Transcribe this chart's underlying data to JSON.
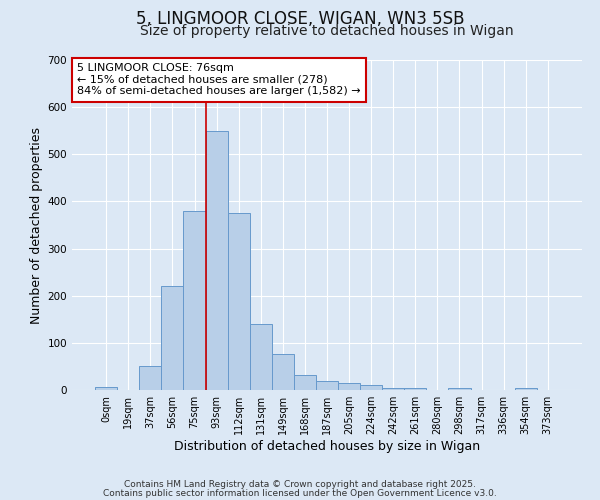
{
  "title1": "5, LINGMOOR CLOSE, WIGAN, WN3 5SB",
  "title2": "Size of property relative to detached houses in Wigan",
  "xlabel": "Distribution of detached houses by size in Wigan",
  "ylabel": "Number of detached properties",
  "bar_labels": [
    "0sqm",
    "19sqm",
    "37sqm",
    "56sqm",
    "75sqm",
    "93sqm",
    "112sqm",
    "131sqm",
    "149sqm",
    "168sqm",
    "187sqm",
    "205sqm",
    "224sqm",
    "242sqm",
    "261sqm",
    "280sqm",
    "298sqm",
    "317sqm",
    "336sqm",
    "354sqm",
    "373sqm"
  ],
  "bar_heights": [
    7,
    0,
    50,
    220,
    380,
    550,
    375,
    140,
    77,
    32,
    20,
    15,
    10,
    5,
    5,
    0,
    5,
    0,
    0,
    5,
    0
  ],
  "bar_color": "#b8cfe8",
  "bar_edge_color": "#6699cc",
  "bar_width": 1.0,
  "vline_x_index": 4,
  "vline_color": "#cc0000",
  "annotation_title": "5 LINGMOOR CLOSE: 76sqm",
  "annotation_line1": "← 15% of detached houses are smaller (278)",
  "annotation_line2": "84% of semi-detached houses are larger (1,582) →",
  "annotation_box_color": "#ffffff",
  "annotation_border_color": "#cc0000",
  "ylim": [
    0,
    700
  ],
  "yticks": [
    0,
    100,
    200,
    300,
    400,
    500,
    600,
    700
  ],
  "background_color": "#dce8f5",
  "footer1": "Contains HM Land Registry data © Crown copyright and database right 2025.",
  "footer2": "Contains public sector information licensed under the Open Government Licence v3.0.",
  "title1_fontsize": 12,
  "title2_fontsize": 10,
  "axis_label_fontsize": 9,
  "tick_fontsize": 7,
  "annotation_fontsize": 8,
  "footer_fontsize": 6.5
}
